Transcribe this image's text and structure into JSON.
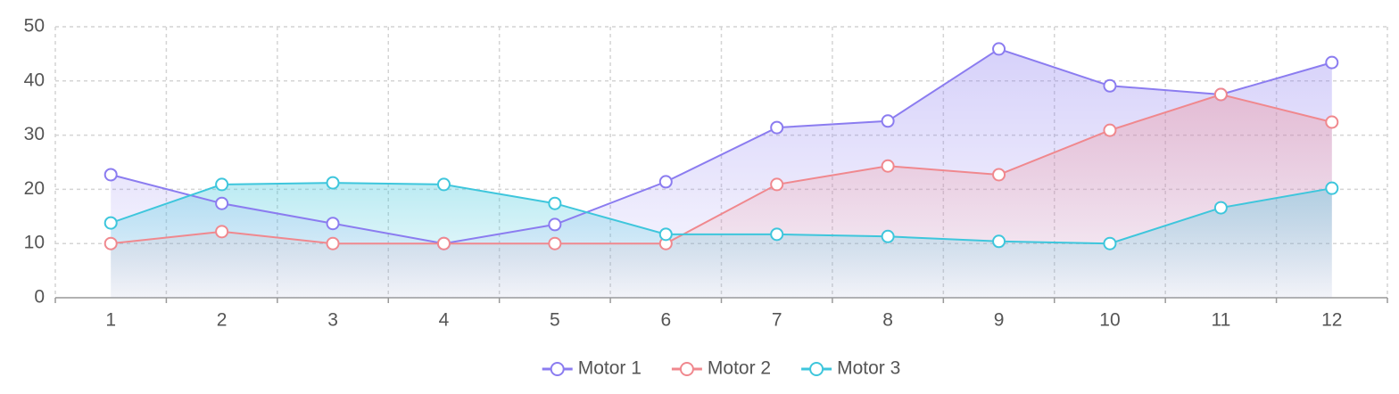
{
  "chart_data": {
    "type": "area",
    "categories": [
      "1",
      "2",
      "3",
      "4",
      "5",
      "6",
      "7",
      "8",
      "9",
      "10",
      "11",
      "12"
    ],
    "series": [
      {
        "name": "Motor 1",
        "color": "#8b7cf0",
        "values": [
          22.7,
          17.4,
          13.7,
          10,
          13.5,
          21.4,
          31.4,
          32.6,
          45.9,
          39.1,
          37.5,
          43.4
        ]
      },
      {
        "name": "Motor 2",
        "color": "#f0888e",
        "values": [
          10,
          12.2,
          10,
          10,
          10,
          10,
          20.9,
          24.3,
          22.7,
          30.9,
          37.5,
          32.4
        ]
      },
      {
        "name": "Motor 3",
        "color": "#3ec6dc",
        "values": [
          13.8,
          20.9,
          21.2,
          20.9,
          17.4,
          11.7,
          11.7,
          11.3,
          10.4,
          10,
          16.6,
          20.2
        ]
      }
    ],
    "ylim": [
      0,
      50
    ],
    "yticks": [
      0,
      10,
      20,
      30,
      40,
      50
    ],
    "grid": true,
    "legend": "bottom"
  }
}
